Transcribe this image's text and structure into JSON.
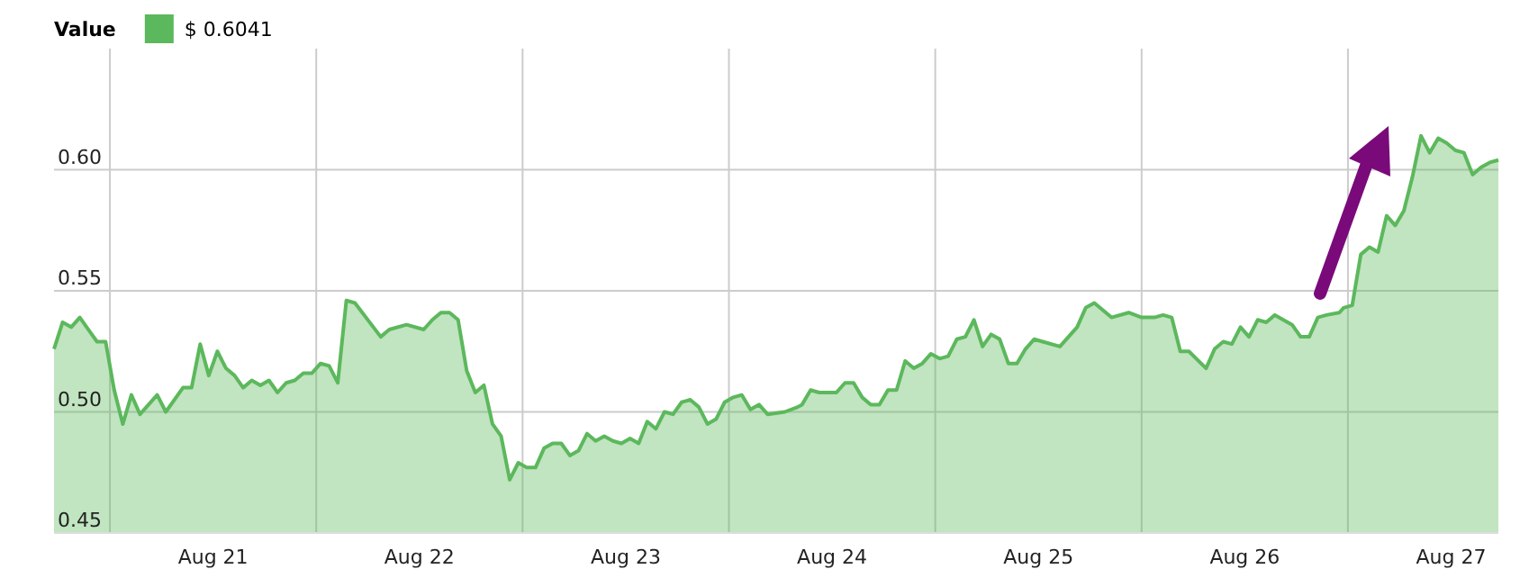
{
  "chart_data": {
    "type": "area",
    "legend_title": "Value",
    "legend": "top left",
    "grid": true,
    "xlim": [
      "--08-20T17:30",
      "--08-27T17:30"
    ],
    "xticks": [
      {
        "value": "--08-21T00:00",
        "label": null
      },
      {
        "value": "--08-21T12:00",
        "label": "Aug 21"
      },
      {
        "value": "--08-22T00:00",
        "label": null
      },
      {
        "value": "--08-22T12:00",
        "label": "Aug 22"
      },
      {
        "value": "--08-23T00:00",
        "label": null
      },
      {
        "value": "--08-23T12:00",
        "label": "Aug 23"
      },
      {
        "value": "--08-24T00:00",
        "label": null
      },
      {
        "value": "--08-24T12:00",
        "label": "Aug 24"
      },
      {
        "value": "--08-25T00:00",
        "label": null
      },
      {
        "value": "--08-25T12:00",
        "label": "Aug 25"
      },
      {
        "value": "--08-26T00:00",
        "label": null
      },
      {
        "value": "--08-26T12:00",
        "label": "Aug 26"
      },
      {
        "value": "--08-27T00:00",
        "label": null
      },
      {
        "value": "--08-27T12:00",
        "label": "Aug 27"
      }
    ],
    "ylim": [
      0.45,
      0.65
    ],
    "yticks": [
      {
        "value": 0.45,
        "label": "0.45"
      },
      {
        "value": 0.5,
        "label": "0.50"
      },
      {
        "value": 0.55,
        "label": "0.55"
      },
      {
        "value": 0.6,
        "label": "0.60"
      }
    ],
    "x": [
      "--08-20T17:30",
      "--08-20T18:30",
      "--08-20T19:30",
      "--08-20T20:30",
      "--08-20T21:30",
      "--08-20T22:30",
      "--08-20T23:30",
      "--08-21T00:30",
      "--08-21T01:30",
      "--08-21T02:30",
      "--08-21T03:30",
      "--08-21T05:30",
      "--08-21T06:30",
      "--08-21T08:30",
      "--08-21T09:30",
      "--08-21T10:30",
      "--08-21T11:30",
      "--08-21T12:30",
      "--08-21T13:30",
      "--08-21T14:30",
      "--08-21T15:30",
      "--08-21T16:30",
      "--08-21T17:30",
      "--08-21T18:30",
      "--08-21T19:30",
      "--08-21T20:30",
      "--08-21T21:30",
      "--08-21T22:30",
      "--08-21T23:30",
      "--08-22T00:30",
      "--08-22T01:30",
      "--08-22T02:30",
      "--08-22T03:30",
      "--08-22T04:30",
      "--08-22T07:30",
      "--08-22T08:30",
      "--08-22T10:30",
      "--08-22T12:30",
      "--08-22T13:30",
      "--08-22T14:30",
      "--08-22T15:30",
      "--08-22T16:30",
      "--08-22T17:30",
      "--08-22T18:30",
      "--08-22T19:30",
      "--08-22T20:30",
      "--08-22T21:30",
      "--08-22T22:30",
      "--08-22T23:30",
      "--08-23T00:30",
      "--08-23T01:30",
      "--08-23T02:30",
      "--08-23T03:30",
      "--08-23T04:30",
      "--08-23T05:30",
      "--08-23T06:30",
      "--08-23T07:30",
      "--08-23T08:30",
      "--08-23T09:30",
      "--08-23T10:30",
      "--08-23T11:30",
      "--08-23T12:30",
      "--08-23T13:30",
      "--08-23T14:30",
      "--08-23T15:30",
      "--08-23T16:30",
      "--08-23T17:30",
      "--08-23T18:30",
      "--08-23T19:30",
      "--08-23T20:30",
      "--08-23T21:30",
      "--08-23T22:30",
      "--08-23T23:30",
      "--08-24T00:30",
      "--08-24T01:30",
      "--08-24T02:30",
      "--08-24T03:30",
      "--08-24T04:30",
      "--08-24T06:30",
      "--08-24T08:00",
      "--08-24T08:30",
      "--08-24T09:30",
      "--08-24T10:30",
      "--08-24T12:30",
      "--08-24T13:30",
      "--08-24T14:30",
      "--08-24T15:30",
      "--08-24T16:30",
      "--08-24T17:30",
      "--08-24T18:30",
      "--08-24T19:30",
      "--08-24T20:30",
      "--08-24T21:30",
      "--08-24T22:30",
      "--08-24T23:30",
      "--08-25T00:30",
      "--08-25T01:30",
      "--08-25T02:30",
      "--08-25T03:30",
      "--08-25T04:30",
      "--08-25T05:30",
      "--08-25T06:30",
      "--08-25T07:30",
      "--08-25T08:30",
      "--08-25T09:30",
      "--08-25T10:30",
      "--08-25T11:30",
      "--08-25T12:30",
      "--08-25T14:30",
      "--08-25T16:30",
      "--08-25T17:30",
      "--08-25T18:30",
      "--08-25T20:30",
      "--08-25T22:30",
      "--08-26T00:00",
      "--08-26T01:30",
      "--08-26T02:30",
      "--08-26T03:30",
      "--08-26T04:30",
      "--08-26T05:30",
      "--08-26T07:30",
      "--08-26T08:30",
      "--08-26T09:30",
      "--08-26T10:30",
      "--08-26T11:30",
      "--08-26T12:30",
      "--08-26T13:30",
      "--08-26T14:30",
      "--08-26T15:30",
      "--08-26T17:30",
      "--08-26T18:30",
      "--08-26T19:30",
      "--08-26T20:30",
      "--08-26T21:30",
      "--08-26T23:00",
      "--08-26T23:30",
      "--08-27T00:30",
      "--08-27T01:30",
      "--08-27T02:30",
      "--08-27T03:30",
      "--08-27T04:30",
      "--08-27T05:30",
      "--08-27T06:30",
      "--08-27T07:30",
      "--08-27T08:30",
      "--08-27T09:30",
      "--08-27T10:30",
      "--08-27T11:30",
      "--08-27T12:30",
      "--08-27T13:30",
      "--08-27T14:30",
      "--08-27T15:30",
      "--08-27T16:30",
      "--08-27T17:30"
    ],
    "series": [
      {
        "name": "$ 0.6041",
        "color": "#5cb85c",
        "values": [
          0.526,
          0.537,
          0.535,
          0.539,
          0.534,
          0.529,
          0.529,
          0.509,
          0.495,
          0.507,
          0.499,
          0.507,
          0.5,
          0.51,
          0.51,
          0.528,
          0.515,
          0.525,
          0.518,
          0.515,
          0.51,
          0.513,
          0.511,
          0.513,
          0.508,
          0.512,
          0.513,
          0.516,
          0.516,
          0.52,
          0.519,
          0.512,
          0.546,
          0.545,
          0.531,
          0.534,
          0.536,
          0.534,
          0.538,
          0.541,
          0.541,
          0.538,
          0.517,
          0.508,
          0.511,
          0.495,
          0.49,
          0.472,
          0.479,
          0.477,
          0.477,
          0.485,
          0.487,
          0.487,
          0.482,
          0.484,
          0.491,
          0.488,
          0.49,
          0.488,
          0.487,
          0.489,
          0.487,
          0.496,
          0.493,
          0.5,
          0.499,
          0.504,
          0.505,
          0.502,
          0.495,
          0.497,
          0.504,
          0.506,
          0.507,
          0.501,
          0.503,
          0.499,
          0.5,
          0.502,
          0.503,
          0.509,
          0.508,
          0.508,
          0.512,
          0.512,
          0.506,
          0.503,
          0.503,
          0.509,
          0.509,
          0.521,
          0.518,
          0.52,
          0.524,
          0.522,
          0.523,
          0.53,
          0.531,
          0.538,
          0.527,
          0.532,
          0.53,
          0.52,
          0.52,
          0.526,
          0.53,
          0.529,
          0.527,
          0.535,
          0.543,
          0.545,
          0.539,
          0.541,
          0.539,
          0.539,
          0.54,
          0.539,
          0.525,
          0.525,
          0.518,
          0.526,
          0.529,
          0.528,
          0.535,
          0.531,
          0.538,
          0.537,
          0.54,
          0.536,
          0.531,
          0.531,
          0.539,
          0.54,
          0.541,
          0.543,
          0.544,
          0.565,
          0.568,
          0.566,
          0.581,
          0.577,
          0.583,
          0.597,
          0.614,
          0.607,
          0.613,
          0.611,
          0.608,
          0.607,
          0.598,
          0.601,
          0.603,
          0.604
        ]
      }
    ]
  }
}
